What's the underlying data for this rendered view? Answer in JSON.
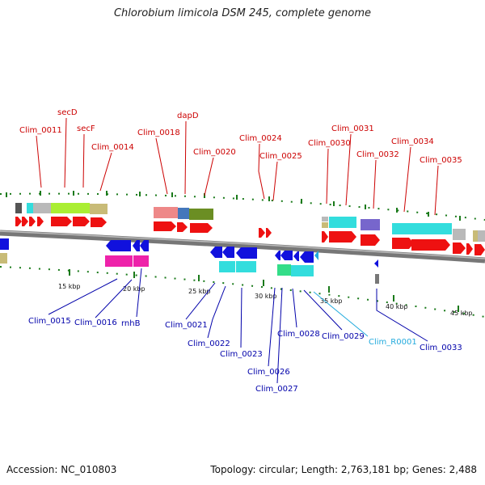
{
  "title": "Chlorobium limicola DSM 245, complete genome",
  "accession": "Accession: NC_010803",
  "summary": "Topology: circular; Length: 2,763,181 bp; Genes: 2,488",
  "colors": {
    "forward_label": "#cc0000",
    "reverse_label": "#0000aa",
    "rna_label": "#22aadd",
    "cds_forward": "#ee1111",
    "cds_reverse": "#1111dd",
    "backbone": "#777777",
    "tick": "#1a7a1a"
  },
  "forward_labels": [
    {
      "id": "fl-clim_0011",
      "text": "Clim_0011"
    },
    {
      "id": "fl-secd",
      "text": "secD"
    },
    {
      "id": "fl-secf",
      "text": "secF"
    },
    {
      "id": "fl-clim_0014",
      "text": "Clim_0014"
    },
    {
      "id": "fl-clim_0018",
      "text": "Clim_0018"
    },
    {
      "id": "fl-dapd",
      "text": "dapD"
    },
    {
      "id": "fl-clim_0020",
      "text": "Clim_0020"
    },
    {
      "id": "fl-clim_0024",
      "text": "Clim_0024"
    },
    {
      "id": "fl-clim_0025",
      "text": "Clim_0025"
    },
    {
      "id": "fl-clim_0030",
      "text": "Clim_0030"
    },
    {
      "id": "fl-clim_0031",
      "text": "Clim_0031"
    },
    {
      "id": "fl-clim_0032",
      "text": "Clim_0032"
    },
    {
      "id": "fl-clim_0034",
      "text": "Clim_0034"
    },
    {
      "id": "fl-clim_0035",
      "text": "Clim_0035"
    }
  ],
  "reverse_labels": [
    {
      "id": "rl-clim_0015",
      "text": "Clim_0015"
    },
    {
      "id": "rl-clim_0016",
      "text": "Clim_0016"
    },
    {
      "id": "rl-rnhb",
      "text": "rnhB"
    },
    {
      "id": "rl-clim_0021",
      "text": "Clim_0021"
    },
    {
      "id": "rl-clim_0022",
      "text": "Clim_0022"
    },
    {
      "id": "rl-clim_0023",
      "text": "Clim_0023"
    },
    {
      "id": "rl-clim_0026",
      "text": "Clim_0026"
    },
    {
      "id": "rl-clim_0027",
      "text": "Clim_0027"
    },
    {
      "id": "rl-clim_0028",
      "text": "Clim_0028"
    },
    {
      "id": "rl-clim_0029",
      "text": "Clim_0029"
    },
    {
      "id": "rl-clim_r0001",
      "text": "Clim_R0001"
    },
    {
      "id": "rl-clim_0033",
      "text": "Clim_0033"
    }
  ],
  "ticks": [
    {
      "id": "tick-15",
      "text": "15 kbp"
    },
    {
      "id": "tick-20",
      "text": "20 kbp"
    },
    {
      "id": "tick-25",
      "text": "25 kbp"
    },
    {
      "id": "tick-30",
      "text": "30 kbp"
    },
    {
      "id": "tick-35",
      "text": "35 kbp"
    },
    {
      "id": "tick-40",
      "text": "40 kbp"
    },
    {
      "id": "tick-45",
      "text": "45 kbp"
    }
  ]
}
